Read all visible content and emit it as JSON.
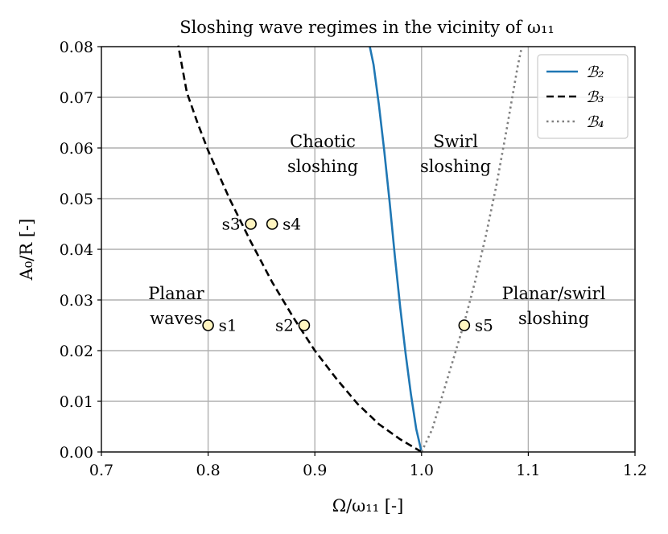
{
  "chart_data": {
    "type": "line",
    "title": "Sloshing wave regimes in the vicinity of ω₁₁",
    "xlabel": "Ω/ω₁₁ [-]",
    "ylabel": "A₀/R [-]",
    "xlim": [
      0.7,
      1.2
    ],
    "ylim": [
      0.0,
      0.08
    ],
    "xticks": [
      0.7,
      0.8,
      0.9,
      1.0,
      1.1,
      1.2
    ],
    "xtick_labels": [
      "0.7",
      "0.8",
      "0.9",
      "1.0",
      "1.1",
      "1.2"
    ],
    "yticks": [
      0.0,
      0.01,
      0.02,
      0.03,
      0.04,
      0.05,
      0.06,
      0.07,
      0.08
    ],
    "ytick_labels": [
      "0.00",
      "0.01",
      "0.02",
      "0.03",
      "0.04",
      "0.05",
      "0.06",
      "0.07",
      "0.08"
    ],
    "grid": true,
    "legend_position": "top-right",
    "series": [
      {
        "name": "B2",
        "legend_label": "ℬ₂",
        "style": "solid",
        "color": "#1f77b4",
        "x": [
          1.0,
          0.995,
          0.99,
          0.985,
          0.98,
          0.975,
          0.97,
          0.965,
          0.96,
          0.955,
          0.9515
        ],
        "y": [
          0.0,
          0.0045,
          0.0115,
          0.0195,
          0.0285,
          0.0385,
          0.0495,
          0.0595,
          0.0685,
          0.0765,
          0.08
        ]
      },
      {
        "name": "B3",
        "legend_label": "ℬ₃",
        "style": "dashed",
        "color": "#000000",
        "x": [
          1.0,
          0.98,
          0.96,
          0.94,
          0.92,
          0.9,
          0.88,
          0.86,
          0.84,
          0.82,
          0.8,
          0.79,
          0.78,
          0.772
        ],
        "y": [
          0.0,
          0.0025,
          0.0055,
          0.0095,
          0.0145,
          0.02,
          0.0265,
          0.0335,
          0.0415,
          0.05,
          0.0595,
          0.065,
          0.071,
          0.0802
        ]
      },
      {
        "name": "B4",
        "legend_label": "ℬ₄",
        "style": "dotted",
        "color": "#808080",
        "x": [
          1.0,
          1.01,
          1.02,
          1.03,
          1.04,
          1.05,
          1.06,
          1.07,
          1.08,
          1.09,
          1.094
        ],
        "y": [
          0.0,
          0.0045,
          0.0115,
          0.0185,
          0.0255,
          0.0335,
          0.0425,
          0.0525,
          0.064,
          0.076,
          0.08
        ]
      }
    ],
    "points": [
      {
        "label": "s1",
        "x": 0.8,
        "y": 0.025
      },
      {
        "label": "s2",
        "x": 0.89,
        "y": 0.025
      },
      {
        "label": "s3",
        "x": 0.84,
        "y": 0.045
      },
      {
        "label": "s4",
        "x": 0.86,
        "y": 0.045
      },
      {
        "label": "s5",
        "x": 1.04,
        "y": 0.025
      }
    ],
    "point_fill": "#fff5c0",
    "regions": [
      {
        "lines": [
          "Planar",
          "waves"
        ]
      },
      {
        "lines": [
          "Chaotic",
          "sloshing"
        ]
      },
      {
        "lines": [
          "Swirl",
          "sloshing"
        ]
      },
      {
        "lines": [
          "Planar/swirl",
          "sloshing"
        ]
      }
    ]
  }
}
